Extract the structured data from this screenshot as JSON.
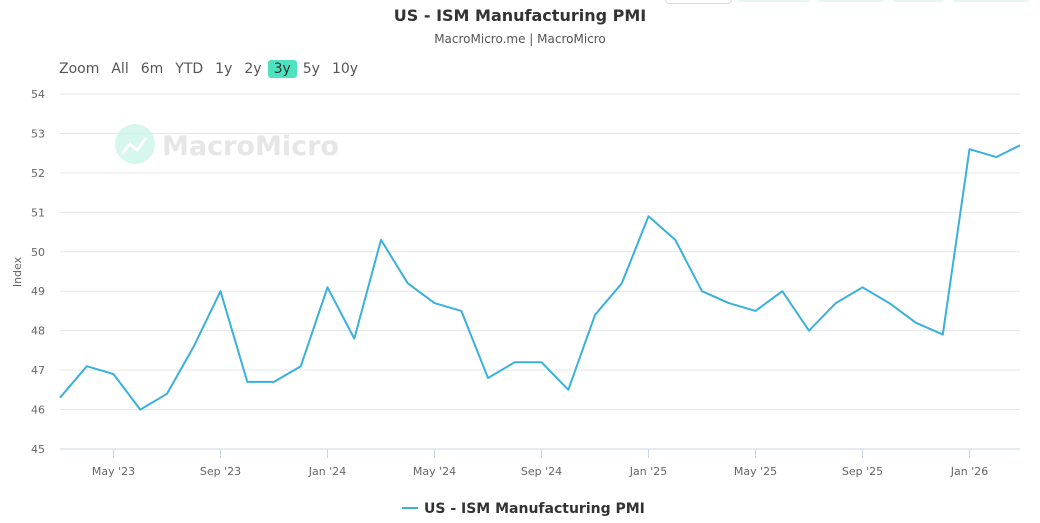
{
  "chart_data": {
    "type": "line",
    "title": "US - ISM Manufacturing PMI",
    "subtitle": "MacroMicro.me | MacroMicro",
    "watermark": "MacroMicro",
    "ylabel": "Index",
    "ylim": [
      45,
      54
    ],
    "yticks": [
      45,
      46,
      47,
      48,
      49,
      50,
      51,
      52,
      53,
      54
    ],
    "xticks": [
      "May '23",
      "Sep '23",
      "Jan '24",
      "May '24",
      "Sep '24",
      "Jan '25",
      "May '25",
      "Sep '25",
      "Jan '26"
    ],
    "grid": true,
    "legend_position": "bottom",
    "color": "#3ab0dc",
    "series": [
      {
        "name": "US - ISM Manufacturing PMI",
        "x": [
          "2023-03",
          "2023-04",
          "2023-05",
          "2023-06",
          "2023-07",
          "2023-08",
          "2023-09",
          "2023-10",
          "2023-11",
          "2023-12",
          "2024-01",
          "2024-02",
          "2024-03",
          "2024-04",
          "2024-05",
          "2024-06",
          "2024-07",
          "2024-08",
          "2024-09",
          "2024-10",
          "2024-11",
          "2024-12",
          "2025-01",
          "2025-02",
          "2025-03",
          "2025-04",
          "2025-05",
          "2025-06",
          "2025-07",
          "2025-08",
          "2025-09",
          "2025-10",
          "2025-11",
          "2025-12",
          "2026-01",
          "2026-02",
          "2026-03"
        ],
        "values": [
          46.3,
          47.1,
          46.9,
          46.0,
          46.4,
          47.6,
          49.0,
          46.7,
          46.7,
          47.1,
          49.1,
          47.8,
          50.3,
          49.2,
          48.7,
          48.5,
          46.8,
          47.2,
          47.2,
          46.5,
          48.4,
          49.2,
          50.9,
          50.3,
          49.0,
          48.7,
          48.5,
          49.0,
          48.0,
          48.7,
          49.1,
          48.7,
          48.2,
          47.9,
          52.6,
          52.4,
          52.7
        ]
      }
    ]
  },
  "zoom": {
    "label": "Zoom",
    "options": [
      "All",
      "6m",
      "YTD",
      "1y",
      "2y",
      "3y",
      "5y",
      "10y"
    ],
    "selected": "3y"
  }
}
